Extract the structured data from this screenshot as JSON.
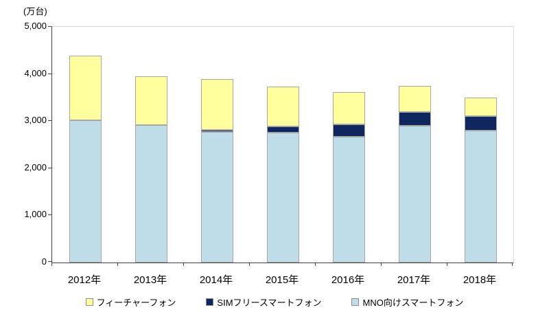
{
  "chart_data": {
    "type": "bar",
    "subtype": "stacked-vertical",
    "title": "",
    "unit_label": "(万台)",
    "categories": [
      "2012年",
      "2013年",
      "2014年",
      "2015年",
      "2016年",
      "2017年",
      "2018年"
    ],
    "series": [
      {
        "name": "MNO向けスマートフォン",
        "color": "#BFDDE9",
        "values": [
          3020,
          2920,
          2770,
          2750,
          2670,
          2900,
          2800
        ]
      },
      {
        "name": "SIMフリースマートフォン",
        "color": "#10265F",
        "values": [
          0,
          0,
          40,
          130,
          260,
          290,
          310
        ]
      },
      {
        "name": "フィーチャーフォン",
        "color": "#FFFF9E",
        "values": [
          1370,
          1030,
          1080,
          850,
          680,
          550,
          400
        ]
      }
    ],
    "ylim": [
      0,
      5000
    ],
    "yticks": [
      0,
      1000,
      2000,
      3000,
      4000,
      5000
    ],
    "ytick_labels": [
      "0",
      "1,000",
      "2,000",
      "3,000",
      "4,000",
      "5,000"
    ],
    "grid": false,
    "legend_position": "bottom",
    "legend": [
      {
        "label": "フィーチャーフォン",
        "color": "#FFFF9E"
      },
      {
        "label": "SIMフリースマートフォン",
        "color": "#10265F"
      },
      {
        "label": "MNO向けスマートフォン",
        "color": "#BFDDE9"
      }
    ],
    "colors": {
      "bar_border": "#A6A6A6",
      "axis_line": "#404040",
      "plot_border": "#D9D9D9",
      "background": "#FFFFFF",
      "text": "#000000"
    }
  }
}
